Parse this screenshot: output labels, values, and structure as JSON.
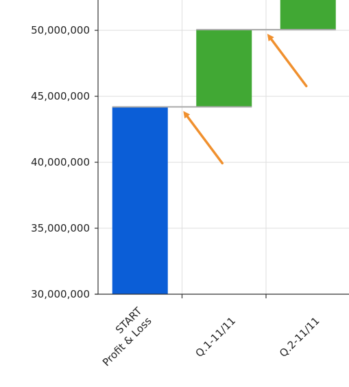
{
  "chart_data": {
    "type": "bar",
    "subtype": "waterfall",
    "title": "",
    "xlabel": "",
    "ylabel": "",
    "ylim": [
      30000000,
      52300000
    ],
    "y_ticks": [
      30000000,
      35000000,
      40000000,
      45000000,
      50000000
    ],
    "y_tick_labels": [
      "30,000,000",
      "35,000,000",
      "40,000,000",
      "45,000,000",
      "50,000,000"
    ],
    "grid": true,
    "legend": "none",
    "categories": [
      {
        "lines": [
          "START",
          "Profit & Loss"
        ]
      },
      {
        "lines": [
          "Q.1-11/11"
        ]
      },
      {
        "lines": [
          "Q.2-11/11"
        ]
      }
    ],
    "bars": [
      {
        "kind": "total",
        "start": 30000000,
        "end": 44200000,
        "color": "#0b5ed7"
      },
      {
        "kind": "increase",
        "start": 44200000,
        "end": 50050000,
        "color": "#41a834"
      },
      {
        "kind": "increase",
        "start": 50050000,
        "end": 53000000,
        "color": "#41a834"
      }
    ],
    "annotations": [
      {
        "type": "arrow",
        "color": "#f0902e",
        "target_bar": 1
      },
      {
        "type": "arrow",
        "color": "#f0902e",
        "target_bar": 2
      }
    ],
    "colors": {
      "grid": "#dddddd",
      "axis": "#333333",
      "connector": "#aaaaaa",
      "arrow": "#f0902e"
    }
  }
}
